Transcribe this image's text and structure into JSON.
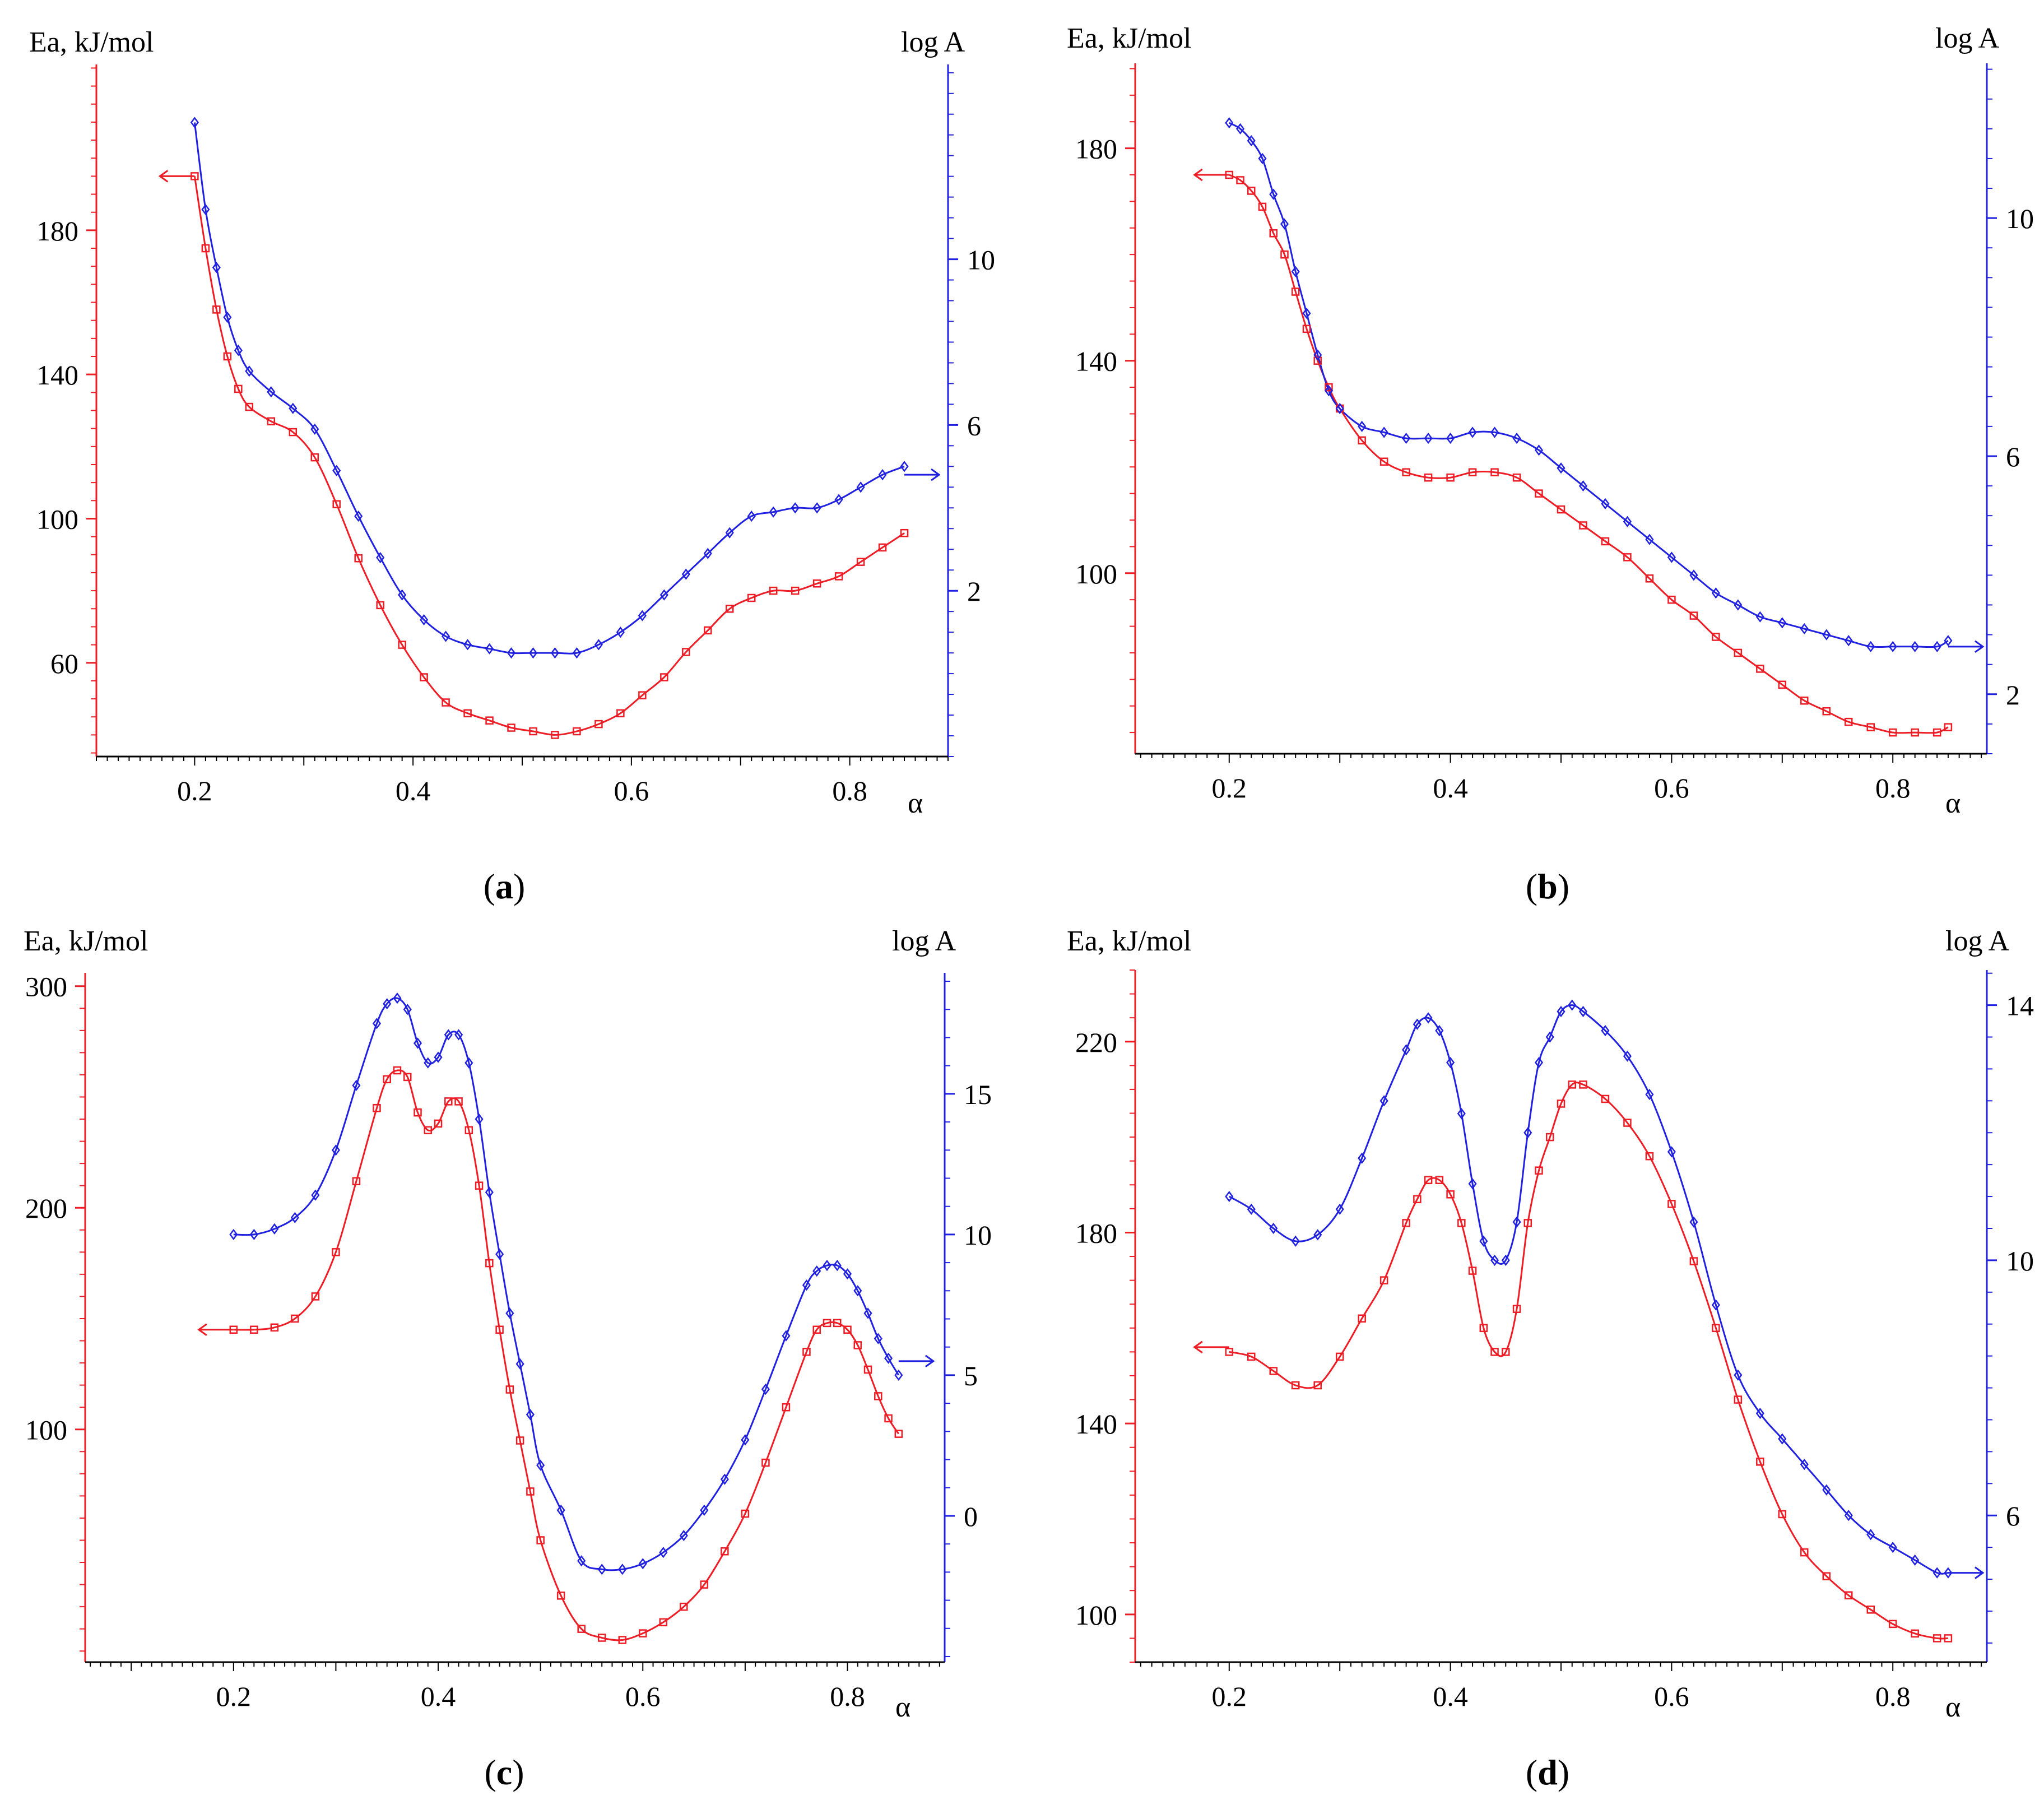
{
  "colors": {
    "ea": "#ee1c24",
    "loga": "#2020e0",
    "axis_left": "#ee1c24",
    "axis_right": "#2020e0",
    "text": "#000000"
  },
  "chart_data": [
    {
      "type": "line",
      "id": "a",
      "caption": "a",
      "xlabel": "α",
      "ylabel_left": "Ea, kJ/mol",
      "ylabel_right": "log A",
      "xlim": [
        0.11,
        0.89
      ],
      "xticks": [
        "0.2",
        "0.4",
        "0.6",
        "0.8"
      ],
      "ylim_left": [
        34,
        226
      ],
      "yticks_left": [
        "60",
        "100",
        "140",
        "180"
      ],
      "ylim_right": [
        -2.0,
        14.7
      ],
      "yticks_right": [
        "2",
        "6",
        "10"
      ],
      "arrow_left_at": 195,
      "arrow_right_at": 4.8,
      "series": [
        {
          "name": "Ea",
          "axis": "left",
          "marker": "square",
          "x": [
            0.2,
            0.21,
            0.22,
            0.23,
            0.24,
            0.25,
            0.27,
            0.29,
            0.31,
            0.33,
            0.35,
            0.37,
            0.39,
            0.41,
            0.43,
            0.45,
            0.47,
            0.49,
            0.51,
            0.53,
            0.55,
            0.57,
            0.59,
            0.61,
            0.63,
            0.65,
            0.67,
            0.69,
            0.71,
            0.73,
            0.75,
            0.77,
            0.79,
            0.81,
            0.83,
            0.85
          ],
          "y": [
            195,
            175,
            158,
            145,
            136,
            131,
            127,
            124,
            117,
            104,
            89,
            76,
            65,
            56,
            49,
            46,
            44,
            42,
            41,
            40,
            41,
            43,
            46,
            51,
            56,
            63,
            69,
            75,
            78,
            80,
            80,
            82,
            84,
            88,
            92,
            96
          ]
        },
        {
          "name": "log A",
          "axis": "right",
          "marker": "diamond",
          "x": [
            0.2,
            0.21,
            0.22,
            0.23,
            0.24,
            0.25,
            0.27,
            0.29,
            0.31,
            0.33,
            0.35,
            0.37,
            0.39,
            0.41,
            0.43,
            0.45,
            0.47,
            0.49,
            0.51,
            0.53,
            0.55,
            0.57,
            0.59,
            0.61,
            0.63,
            0.65,
            0.67,
            0.69,
            0.71,
            0.73,
            0.75,
            0.77,
            0.79,
            0.81,
            0.83,
            0.85
          ],
          "y": [
            13.3,
            11.2,
            9.8,
            8.6,
            7.8,
            7.3,
            6.8,
            6.4,
            5.9,
            4.9,
            3.8,
            2.8,
            1.9,
            1.3,
            0.9,
            0.7,
            0.6,
            0.5,
            0.5,
            0.5,
            0.5,
            0.7,
            1.0,
            1.4,
            1.9,
            2.4,
            2.9,
            3.4,
            3.8,
            3.9,
            4.0,
            4.0,
            4.2,
            4.5,
            4.8,
            5.0
          ]
        }
      ]
    },
    {
      "type": "line",
      "id": "b",
      "caption": "b",
      "xlabel": "α",
      "ylabel_left": "Ea, kJ/mol",
      "ylabel_right": "log A",
      "xlim": [
        0.115,
        0.885
      ],
      "xticks": [
        "0.2",
        "0.4",
        "0.6",
        "0.8"
      ],
      "ylim_left": [
        66,
        196
      ],
      "yticks_left": [
        "100",
        "140",
        "180"
      ],
      "ylim_right": [
        1.0,
        12.6
      ],
      "yticks_right": [
        "2",
        "6",
        "10"
      ],
      "arrow_left_at": 175,
      "arrow_right_at": 2.8,
      "series": [
        {
          "name": "Ea",
          "axis": "left",
          "marker": "square",
          "x": [
            0.2,
            0.21,
            0.22,
            0.23,
            0.24,
            0.25,
            0.26,
            0.27,
            0.28,
            0.29,
            0.3,
            0.32,
            0.34,
            0.36,
            0.38,
            0.4,
            0.42,
            0.44,
            0.46,
            0.48,
            0.5,
            0.52,
            0.54,
            0.56,
            0.58,
            0.6,
            0.62,
            0.64,
            0.66,
            0.68,
            0.7,
            0.72,
            0.74,
            0.76,
            0.78,
            0.8,
            0.82,
            0.84,
            0.85
          ],
          "y": [
            175,
            174,
            172,
            169,
            164,
            160,
            153,
            146,
            140,
            135,
            131,
            125,
            121,
            119,
            118,
            118,
            119,
            119,
            118,
            115,
            112,
            109,
            106,
            103,
            99,
            95,
            92,
            88,
            85,
            82,
            79,
            76,
            74,
            72,
            71,
            70,
            70,
            70,
            71
          ]
        },
        {
          "name": "log A",
          "axis": "right",
          "marker": "diamond",
          "x": [
            0.2,
            0.21,
            0.22,
            0.23,
            0.24,
            0.25,
            0.26,
            0.27,
            0.28,
            0.29,
            0.3,
            0.32,
            0.34,
            0.36,
            0.38,
            0.4,
            0.42,
            0.44,
            0.46,
            0.48,
            0.5,
            0.52,
            0.54,
            0.56,
            0.58,
            0.6,
            0.62,
            0.64,
            0.66,
            0.68,
            0.7,
            0.72,
            0.74,
            0.76,
            0.78,
            0.8,
            0.82,
            0.84,
            0.85
          ],
          "y": [
            11.6,
            11.5,
            11.3,
            11.0,
            10.4,
            9.9,
            9.1,
            8.4,
            7.7,
            7.1,
            6.8,
            6.5,
            6.4,
            6.3,
            6.3,
            6.3,
            6.4,
            6.4,
            6.3,
            6.1,
            5.8,
            5.5,
            5.2,
            4.9,
            4.6,
            4.3,
            4.0,
            3.7,
            3.5,
            3.3,
            3.2,
            3.1,
            3.0,
            2.9,
            2.8,
            2.8,
            2.8,
            2.8,
            2.9
          ]
        }
      ]
    },
    {
      "type": "line",
      "id": "c",
      "caption": "c",
      "xlabel": "α",
      "ylabel_left": "Ea, kJ/mol",
      "ylabel_right": "log A",
      "xlim": [
        0.055,
        0.895
      ],
      "xticks": [
        "0.2",
        "0.4",
        "0.6",
        "0.8"
      ],
      "ylim_left": [
        -5,
        306
      ],
      "yticks_left": [
        "100",
        "200",
        "300"
      ],
      "ylim_right": [
        -5.2,
        19.3
      ],
      "yticks_right": [
        "0",
        "5",
        "10",
        "15"
      ],
      "arrow_left_at": 145,
      "arrow_right_at": 5.5,
      "series": [
        {
          "name": "Ea",
          "axis": "left",
          "marker": "square",
          "x": [
            0.2,
            0.22,
            0.24,
            0.26,
            0.28,
            0.3,
            0.32,
            0.34,
            0.35,
            0.36,
            0.37,
            0.38,
            0.39,
            0.4,
            0.41,
            0.42,
            0.43,
            0.44,
            0.45,
            0.46,
            0.47,
            0.48,
            0.49,
            0.5,
            0.52,
            0.54,
            0.56,
            0.58,
            0.6,
            0.62,
            0.64,
            0.66,
            0.68,
            0.7,
            0.72,
            0.74,
            0.76,
            0.77,
            0.78,
            0.79,
            0.8,
            0.81,
            0.82,
            0.83,
            0.84,
            0.85
          ],
          "y": [
            145,
            145,
            146,
            150,
            160,
            180,
            212,
            245,
            258,
            262,
            259,
            243,
            235,
            238,
            248,
            248,
            235,
            210,
            175,
            145,
            118,
            95,
            72,
            50,
            25,
            10,
            6,
            5,
            8,
            13,
            20,
            30,
            45,
            62,
            85,
            110,
            135,
            145,
            148,
            148,
            145,
            138,
            127,
            115,
            105,
            98
          ]
        },
        {
          "name": "log A",
          "axis": "right",
          "marker": "diamond",
          "x": [
            0.2,
            0.22,
            0.24,
            0.26,
            0.28,
            0.3,
            0.32,
            0.34,
            0.35,
            0.36,
            0.37,
            0.38,
            0.39,
            0.4,
            0.41,
            0.42,
            0.43,
            0.44,
            0.45,
            0.46,
            0.47,
            0.48,
            0.49,
            0.5,
            0.52,
            0.54,
            0.56,
            0.58,
            0.6,
            0.62,
            0.64,
            0.66,
            0.68,
            0.7,
            0.72,
            0.74,
            0.76,
            0.77,
            0.78,
            0.79,
            0.8,
            0.81,
            0.82,
            0.83,
            0.84,
            0.85
          ],
          "y": [
            10.0,
            10.0,
            10.2,
            10.6,
            11.4,
            13.0,
            15.3,
            17.5,
            18.2,
            18.4,
            18.0,
            16.8,
            16.1,
            16.3,
            17.1,
            17.1,
            16.1,
            14.1,
            11.5,
            9.3,
            7.2,
            5.4,
            3.6,
            1.8,
            0.2,
            -1.6,
            -1.9,
            -1.9,
            -1.7,
            -1.3,
            -0.7,
            0.2,
            1.3,
            2.7,
            4.5,
            6.4,
            8.2,
            8.7,
            8.9,
            8.9,
            8.6,
            8.0,
            7.2,
            6.3,
            5.6,
            5.0
          ]
        }
      ]
    },
    {
      "type": "line",
      "id": "d",
      "caption": "d",
      "xlabel": "α",
      "ylabel_left": "Ea, kJ/mol",
      "ylabel_right": "log A",
      "xlim": [
        0.115,
        0.885
      ],
      "xticks": [
        "0.2",
        "0.4",
        "0.6",
        "0.8"
      ],
      "ylim_left": [
        90,
        235
      ],
      "yticks_left": [
        "100",
        "140",
        "180",
        "220"
      ],
      "ylim_right": [
        3.7,
        14.55
      ],
      "yticks_right": [
        "6",
        "10",
        "14"
      ],
      "arrow_left_at": 156,
      "arrow_right_at": 5.1,
      "series": [
        {
          "name": "Ea",
          "axis": "left",
          "marker": "square",
          "x": [
            0.2,
            0.22,
            0.24,
            0.26,
            0.28,
            0.3,
            0.32,
            0.34,
            0.36,
            0.37,
            0.38,
            0.39,
            0.4,
            0.41,
            0.42,
            0.43,
            0.44,
            0.45,
            0.46,
            0.47,
            0.48,
            0.49,
            0.5,
            0.51,
            0.52,
            0.54,
            0.56,
            0.58,
            0.6,
            0.62,
            0.64,
            0.66,
            0.68,
            0.7,
            0.72,
            0.74,
            0.76,
            0.78,
            0.8,
            0.82,
            0.84,
            0.85
          ],
          "y": [
            155,
            154,
            151,
            148,
            148,
            154,
            162,
            170,
            182,
            187,
            191,
            191,
            188,
            182,
            172,
            160,
            155,
            155,
            164,
            182,
            193,
            200,
            207,
            211,
            211,
            208,
            203,
            196,
            186,
            174,
            160,
            145,
            132,
            121,
            113,
            108,
            104,
            101,
            98,
            96,
            95,
            95
          ]
        },
        {
          "name": "log A",
          "axis": "right",
          "marker": "diamond",
          "x": [
            0.2,
            0.22,
            0.24,
            0.26,
            0.28,
            0.3,
            0.32,
            0.34,
            0.36,
            0.37,
            0.38,
            0.39,
            0.4,
            0.41,
            0.42,
            0.43,
            0.44,
            0.45,
            0.46,
            0.47,
            0.48,
            0.49,
            0.5,
            0.51,
            0.52,
            0.54,
            0.56,
            0.58,
            0.6,
            0.62,
            0.64,
            0.66,
            0.68,
            0.7,
            0.72,
            0.74,
            0.76,
            0.78,
            0.8,
            0.82,
            0.84,
            0.85
          ],
          "y": [
            11.0,
            10.8,
            10.5,
            10.3,
            10.4,
            10.8,
            11.6,
            12.5,
            13.3,
            13.7,
            13.8,
            13.6,
            13.1,
            12.3,
            11.2,
            10.3,
            10.0,
            10.0,
            10.6,
            12.0,
            13.1,
            13.5,
            13.9,
            14.0,
            13.9,
            13.6,
            13.2,
            12.6,
            11.7,
            10.6,
            9.3,
            8.2,
            7.6,
            7.2,
            6.8,
            6.4,
            6.0,
            5.7,
            5.5,
            5.3,
            5.1,
            5.1
          ]
        }
      ]
    }
  ]
}
